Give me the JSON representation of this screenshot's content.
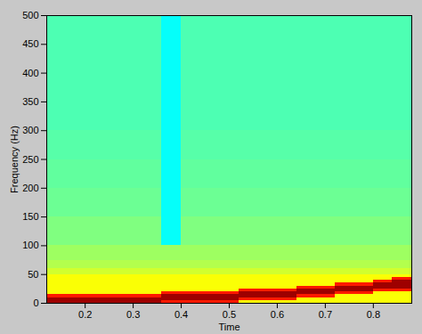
{
  "chart_data": {
    "type": "heatmap",
    "xlabel": "Time",
    "ylabel": "Frequency (Hz)",
    "xlim": [
      0.12,
      0.88
    ],
    "xticks": [
      0.2,
      0.3,
      0.4,
      0.5,
      0.6,
      0.7,
      0.8
    ],
    "ylim": [
      0,
      500
    ],
    "yticks": [
      0,
      50,
      100,
      150,
      200,
      250,
      300,
      350,
      400,
      450,
      500
    ],
    "clim": [
      0,
      1
    ],
    "cells": {
      "x_edges": [
        0.12,
        0.16,
        0.2,
        0.24,
        0.28,
        0.32,
        0.36,
        0.4,
        0.44,
        0.48,
        0.52,
        0.56,
        0.6,
        0.64,
        0.68,
        0.72,
        0.76,
        0.8,
        0.84,
        0.88
      ],
      "y_edges": [
        0,
        5,
        10,
        15,
        20,
        25,
        30,
        35,
        40,
        45,
        50,
        60,
        75,
        100,
        150,
        200,
        250,
        300,
        350,
        400,
        450,
        500
      ],
      "values": [
        [
          0.97,
          0.97,
          0.97,
          0.97,
          0.97,
          0.97,
          0.85,
          0.85,
          0.85,
          0.85,
          0.62,
          0.62,
          0.62,
          0.62,
          0.62,
          0.62,
          0.62,
          0.62,
          0.62
        ],
        [
          0.97,
          0.97,
          0.97,
          0.97,
          0.97,
          0.97,
          0.97,
          0.97,
          0.97,
          0.97,
          0.85,
          0.85,
          0.85,
          0.62,
          0.62,
          0.62,
          0.62,
          0.62,
          0.62
        ],
        [
          0.85,
          0.85,
          0.85,
          0.85,
          0.85,
          0.85,
          0.97,
          0.97,
          0.97,
          0.97,
          0.97,
          0.97,
          0.97,
          0.85,
          0.85,
          0.62,
          0.62,
          0.62,
          0.62
        ],
        [
          0.62,
          0.62,
          0.62,
          0.62,
          0.62,
          0.62,
          0.85,
          0.85,
          0.85,
          0.85,
          0.97,
          0.97,
          0.97,
          0.97,
          0.97,
          0.85,
          0.85,
          0.62,
          0.62
        ],
        [
          0.62,
          0.62,
          0.62,
          0.62,
          0.62,
          0.62,
          0.62,
          0.62,
          0.62,
          0.62,
          0.85,
          0.85,
          0.85,
          0.97,
          0.97,
          0.97,
          0.97,
          0.85,
          0.85
        ],
        [
          0.62,
          0.62,
          0.62,
          0.62,
          0.62,
          0.62,
          0.62,
          0.62,
          0.62,
          0.62,
          0.62,
          0.62,
          0.62,
          0.85,
          0.85,
          0.97,
          0.97,
          0.97,
          0.97
        ],
        [
          0.62,
          0.62,
          0.62,
          0.62,
          0.62,
          0.62,
          0.62,
          0.62,
          0.62,
          0.62,
          0.62,
          0.62,
          0.62,
          0.62,
          0.62,
          0.85,
          0.85,
          0.97,
          0.97
        ],
        [
          0.62,
          0.62,
          0.62,
          0.62,
          0.62,
          0.62,
          0.62,
          0.62,
          0.62,
          0.62,
          0.62,
          0.62,
          0.62,
          0.62,
          0.62,
          0.62,
          0.62,
          0.85,
          0.97
        ],
        [
          0.62,
          0.62,
          0.62,
          0.62,
          0.62,
          0.62,
          0.62,
          0.62,
          0.62,
          0.62,
          0.62,
          0.62,
          0.62,
          0.62,
          0.62,
          0.62,
          0.62,
          0.62,
          0.85
        ],
        [
          0.62,
          0.62,
          0.62,
          0.62,
          0.62,
          0.62,
          0.62,
          0.62,
          0.62,
          0.62,
          0.62,
          0.62,
          0.62,
          0.62,
          0.62,
          0.62,
          0.62,
          0.62,
          0.62
        ],
        [
          0.58,
          0.58,
          0.58,
          0.58,
          0.58,
          0.58,
          0.58,
          0.58,
          0.58,
          0.58,
          0.58,
          0.58,
          0.58,
          0.58,
          0.58,
          0.58,
          0.58,
          0.58,
          0.58
        ],
        [
          0.55,
          0.55,
          0.55,
          0.55,
          0.55,
          0.55,
          0.55,
          0.55,
          0.55,
          0.55,
          0.55,
          0.55,
          0.55,
          0.55,
          0.55,
          0.55,
          0.55,
          0.55,
          0.55
        ],
        [
          0.53,
          0.53,
          0.53,
          0.53,
          0.53,
          0.53,
          0.53,
          0.53,
          0.53,
          0.53,
          0.53,
          0.53,
          0.53,
          0.53,
          0.53,
          0.53,
          0.53,
          0.53,
          0.53
        ],
        [
          0.5,
          0.5,
          0.5,
          0.5,
          0.5,
          0.5,
          0.38,
          0.5,
          0.5,
          0.5,
          0.5,
          0.5,
          0.5,
          0.5,
          0.5,
          0.5,
          0.5,
          0.5,
          0.5
        ],
        [
          0.48,
          0.48,
          0.48,
          0.48,
          0.48,
          0.48,
          0.38,
          0.48,
          0.48,
          0.48,
          0.48,
          0.48,
          0.48,
          0.48,
          0.48,
          0.48,
          0.48,
          0.48,
          0.48
        ],
        [
          0.47,
          0.47,
          0.47,
          0.47,
          0.47,
          0.47,
          0.38,
          0.47,
          0.47,
          0.47,
          0.47,
          0.47,
          0.47,
          0.47,
          0.47,
          0.47,
          0.47,
          0.47,
          0.47
        ],
        [
          0.46,
          0.46,
          0.46,
          0.46,
          0.46,
          0.46,
          0.38,
          0.46,
          0.46,
          0.46,
          0.46,
          0.46,
          0.46,
          0.46,
          0.46,
          0.46,
          0.46,
          0.46,
          0.46
        ],
        [
          0.45,
          0.45,
          0.45,
          0.45,
          0.45,
          0.45,
          0.38,
          0.45,
          0.45,
          0.45,
          0.45,
          0.45,
          0.45,
          0.45,
          0.45,
          0.45,
          0.45,
          0.45,
          0.45
        ],
        [
          0.45,
          0.45,
          0.45,
          0.45,
          0.45,
          0.45,
          0.38,
          0.45,
          0.45,
          0.45,
          0.45,
          0.45,
          0.45,
          0.45,
          0.45,
          0.45,
          0.45,
          0.45,
          0.45
        ],
        [
          0.45,
          0.45,
          0.45,
          0.45,
          0.45,
          0.45,
          0.38,
          0.45,
          0.45,
          0.45,
          0.45,
          0.45,
          0.45,
          0.45,
          0.45,
          0.45,
          0.45,
          0.45,
          0.45
        ],
        [
          0.45,
          0.45,
          0.45,
          0.45,
          0.45,
          0.45,
          0.38,
          0.45,
          0.45,
          0.45,
          0.45,
          0.45,
          0.45,
          0.45,
          0.45,
          0.45,
          0.45,
          0.45,
          0.45
        ]
      ]
    }
  }
}
